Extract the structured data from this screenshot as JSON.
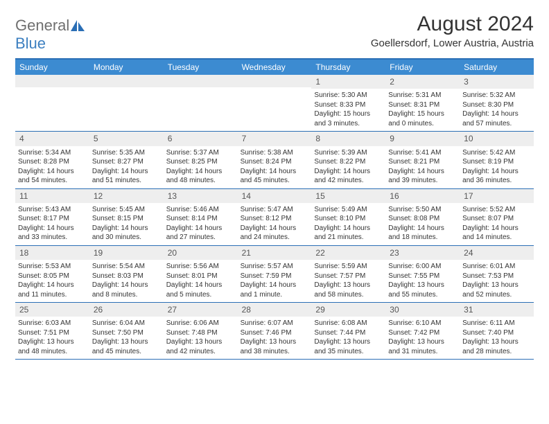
{
  "logo": {
    "word1": "General",
    "word2": "Blue"
  },
  "title": "August 2024",
  "location": "Goellersdorf, Lower Austria, Austria",
  "colors": {
    "header_bar": "#3c8bd1",
    "border": "#2a6eb5",
    "daynum_bg": "#eeeeee",
    "logo_gray": "#6f6f6f",
    "logo_blue": "#3c7fc0"
  },
  "weekdays": [
    "Sunday",
    "Monday",
    "Tuesday",
    "Wednesday",
    "Thursday",
    "Friday",
    "Saturday"
  ],
  "weeks": [
    [
      {
        "n": "",
        "sr": "",
        "ss": "",
        "dl": ""
      },
      {
        "n": "",
        "sr": "",
        "ss": "",
        "dl": ""
      },
      {
        "n": "",
        "sr": "",
        "ss": "",
        "dl": ""
      },
      {
        "n": "",
        "sr": "",
        "ss": "",
        "dl": ""
      },
      {
        "n": "1",
        "sr": "Sunrise: 5:30 AM",
        "ss": "Sunset: 8:33 PM",
        "dl": "Daylight: 15 hours and 3 minutes."
      },
      {
        "n": "2",
        "sr": "Sunrise: 5:31 AM",
        "ss": "Sunset: 8:31 PM",
        "dl": "Daylight: 15 hours and 0 minutes."
      },
      {
        "n": "3",
        "sr": "Sunrise: 5:32 AM",
        "ss": "Sunset: 8:30 PM",
        "dl": "Daylight: 14 hours and 57 minutes."
      }
    ],
    [
      {
        "n": "4",
        "sr": "Sunrise: 5:34 AM",
        "ss": "Sunset: 8:28 PM",
        "dl": "Daylight: 14 hours and 54 minutes."
      },
      {
        "n": "5",
        "sr": "Sunrise: 5:35 AM",
        "ss": "Sunset: 8:27 PM",
        "dl": "Daylight: 14 hours and 51 minutes."
      },
      {
        "n": "6",
        "sr": "Sunrise: 5:37 AM",
        "ss": "Sunset: 8:25 PM",
        "dl": "Daylight: 14 hours and 48 minutes."
      },
      {
        "n": "7",
        "sr": "Sunrise: 5:38 AM",
        "ss": "Sunset: 8:24 PM",
        "dl": "Daylight: 14 hours and 45 minutes."
      },
      {
        "n": "8",
        "sr": "Sunrise: 5:39 AM",
        "ss": "Sunset: 8:22 PM",
        "dl": "Daylight: 14 hours and 42 minutes."
      },
      {
        "n": "9",
        "sr": "Sunrise: 5:41 AM",
        "ss": "Sunset: 8:21 PM",
        "dl": "Daylight: 14 hours and 39 minutes."
      },
      {
        "n": "10",
        "sr": "Sunrise: 5:42 AM",
        "ss": "Sunset: 8:19 PM",
        "dl": "Daylight: 14 hours and 36 minutes."
      }
    ],
    [
      {
        "n": "11",
        "sr": "Sunrise: 5:43 AM",
        "ss": "Sunset: 8:17 PM",
        "dl": "Daylight: 14 hours and 33 minutes."
      },
      {
        "n": "12",
        "sr": "Sunrise: 5:45 AM",
        "ss": "Sunset: 8:15 PM",
        "dl": "Daylight: 14 hours and 30 minutes."
      },
      {
        "n": "13",
        "sr": "Sunrise: 5:46 AM",
        "ss": "Sunset: 8:14 PM",
        "dl": "Daylight: 14 hours and 27 minutes."
      },
      {
        "n": "14",
        "sr": "Sunrise: 5:47 AM",
        "ss": "Sunset: 8:12 PM",
        "dl": "Daylight: 14 hours and 24 minutes."
      },
      {
        "n": "15",
        "sr": "Sunrise: 5:49 AM",
        "ss": "Sunset: 8:10 PM",
        "dl": "Daylight: 14 hours and 21 minutes."
      },
      {
        "n": "16",
        "sr": "Sunrise: 5:50 AM",
        "ss": "Sunset: 8:08 PM",
        "dl": "Daylight: 14 hours and 18 minutes."
      },
      {
        "n": "17",
        "sr": "Sunrise: 5:52 AM",
        "ss": "Sunset: 8:07 PM",
        "dl": "Daylight: 14 hours and 14 minutes."
      }
    ],
    [
      {
        "n": "18",
        "sr": "Sunrise: 5:53 AM",
        "ss": "Sunset: 8:05 PM",
        "dl": "Daylight: 14 hours and 11 minutes."
      },
      {
        "n": "19",
        "sr": "Sunrise: 5:54 AM",
        "ss": "Sunset: 8:03 PM",
        "dl": "Daylight: 14 hours and 8 minutes."
      },
      {
        "n": "20",
        "sr": "Sunrise: 5:56 AM",
        "ss": "Sunset: 8:01 PM",
        "dl": "Daylight: 14 hours and 5 minutes."
      },
      {
        "n": "21",
        "sr": "Sunrise: 5:57 AM",
        "ss": "Sunset: 7:59 PM",
        "dl": "Daylight: 14 hours and 1 minute."
      },
      {
        "n": "22",
        "sr": "Sunrise: 5:59 AM",
        "ss": "Sunset: 7:57 PM",
        "dl": "Daylight: 13 hours and 58 minutes."
      },
      {
        "n": "23",
        "sr": "Sunrise: 6:00 AM",
        "ss": "Sunset: 7:55 PM",
        "dl": "Daylight: 13 hours and 55 minutes."
      },
      {
        "n": "24",
        "sr": "Sunrise: 6:01 AM",
        "ss": "Sunset: 7:53 PM",
        "dl": "Daylight: 13 hours and 52 minutes."
      }
    ],
    [
      {
        "n": "25",
        "sr": "Sunrise: 6:03 AM",
        "ss": "Sunset: 7:51 PM",
        "dl": "Daylight: 13 hours and 48 minutes."
      },
      {
        "n": "26",
        "sr": "Sunrise: 6:04 AM",
        "ss": "Sunset: 7:50 PM",
        "dl": "Daylight: 13 hours and 45 minutes."
      },
      {
        "n": "27",
        "sr": "Sunrise: 6:06 AM",
        "ss": "Sunset: 7:48 PM",
        "dl": "Daylight: 13 hours and 42 minutes."
      },
      {
        "n": "28",
        "sr": "Sunrise: 6:07 AM",
        "ss": "Sunset: 7:46 PM",
        "dl": "Daylight: 13 hours and 38 minutes."
      },
      {
        "n": "29",
        "sr": "Sunrise: 6:08 AM",
        "ss": "Sunset: 7:44 PM",
        "dl": "Daylight: 13 hours and 35 minutes."
      },
      {
        "n": "30",
        "sr": "Sunrise: 6:10 AM",
        "ss": "Sunset: 7:42 PM",
        "dl": "Daylight: 13 hours and 31 minutes."
      },
      {
        "n": "31",
        "sr": "Sunrise: 6:11 AM",
        "ss": "Sunset: 7:40 PM",
        "dl": "Daylight: 13 hours and 28 minutes."
      }
    ]
  ]
}
